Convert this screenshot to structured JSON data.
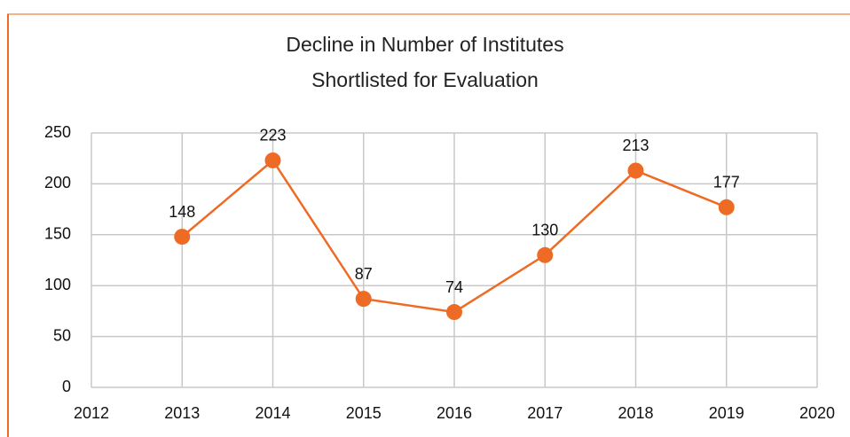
{
  "chart_data": {
    "type": "line",
    "title": "Decline in Number of Institutes Shortlisted for Evaluation",
    "x": [
      2013,
      2014,
      2015,
      2016,
      2017,
      2018,
      2019
    ],
    "values": [
      148,
      223,
      87,
      74,
      130,
      213,
      177
    ],
    "color": "#ee6b25",
    "xlim": [
      2012,
      2020
    ],
    "xticks": [
      2012,
      2013,
      2014,
      2015,
      2016,
      2017,
      2018,
      2019,
      2020
    ],
    "ylim": [
      0,
      250
    ],
    "yticks": [
      0,
      50,
      100,
      150,
      200,
      250
    ],
    "grid": true
  }
}
